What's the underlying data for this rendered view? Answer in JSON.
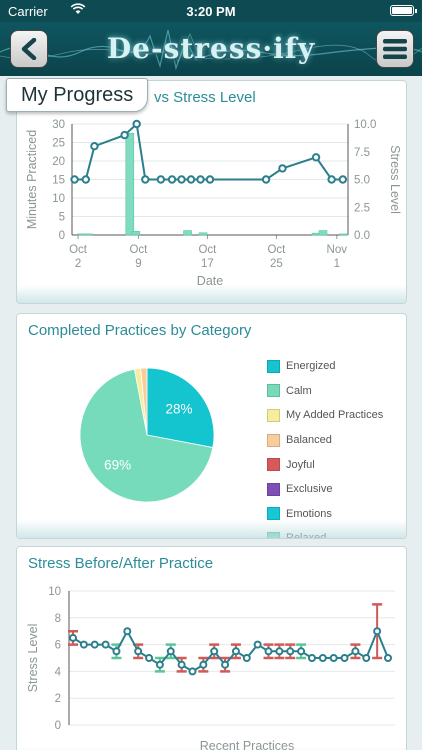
{
  "status_bar": {
    "carrier": "Carrier",
    "time": "3:20 PM"
  },
  "header": {
    "logo": "De-stress·ify"
  },
  "colors": {
    "accent": "#2c8c98",
    "line": "#2b7f8d",
    "bar": "#7fdcc0",
    "error": "#d05a57",
    "error_alt": "#5cc497"
  },
  "progress_card": {
    "tab": "My Progress",
    "title": "vs Stress Level",
    "chart_data": {
      "type": "bar",
      "xlabel": "Date",
      "ylabel": "Minutes Practiced",
      "y2label": "Stress Level",
      "ylim": [
        0,
        30
      ],
      "y2lim": [
        0,
        10
      ],
      "yticks": [
        "0",
        "5",
        "10",
        "15",
        "20",
        "25",
        "30"
      ],
      "y2ticks": [
        "0.0",
        "2.5",
        "5.0",
        "7.5",
        "10.0"
      ],
      "x_range_days": [
        1.3,
        33.3
      ],
      "x_ticks": [
        {
          "line1": "Oct",
          "line2": "2",
          "day": 2
        },
        {
          "line1": "Oct",
          "line2": "9",
          "day": 9
        },
        {
          "line1": "Oct",
          "line2": "17",
          "day": 17
        },
        {
          "line1": "Oct",
          "line2": "25",
          "day": 25
        },
        {
          "line1": "Nov",
          "line2": "1",
          "day": 32
        }
      ],
      "bars": [
        {
          "day": 2.4,
          "minutes": 0.3
        },
        {
          "day": 3.2,
          "minutes": 0.3
        },
        {
          "day": 8.0,
          "minutes": 27.5
        },
        {
          "day": 8.7,
          "minutes": 1.0
        },
        {
          "day": 14.7,
          "minutes": 1.2
        },
        {
          "day": 16.5,
          "minutes": 0.6
        },
        {
          "day": 29.6,
          "minutes": 0.5
        },
        {
          "day": 30.4,
          "minutes": 1.2
        },
        {
          "day": 32.8,
          "minutes": 0.3
        }
      ],
      "stress_series": {
        "name": "Stress Level",
        "points": [
          [
            1.6,
            5
          ],
          [
            2.9,
            5
          ],
          [
            3.9,
            8
          ],
          [
            7.4,
            9
          ],
          [
            8.8,
            10
          ],
          [
            9.8,
            5
          ],
          [
            11.6,
            5
          ],
          [
            12.9,
            5
          ],
          [
            14.0,
            5
          ],
          [
            15.1,
            5
          ],
          [
            16.2,
            5
          ],
          [
            17.3,
            5
          ],
          [
            23.8,
            5
          ],
          [
            25.7,
            6
          ],
          [
            29.6,
            7
          ],
          [
            31.4,
            5
          ],
          [
            32.7,
            5
          ]
        ]
      }
    }
  },
  "pie_card": {
    "title": "Completed Practices by Category",
    "chart_data": {
      "type": "pie",
      "slices": [
        {
          "name": "Energized",
          "value": 28,
          "color": "#14c4cf",
          "label": "28%"
        },
        {
          "name": "Calm",
          "value": 69,
          "color": "#76dbbb",
          "label": "69%"
        },
        {
          "name": "My Added Practices",
          "value": 1.5,
          "color": "#f6ee9c",
          "label": ""
        },
        {
          "name": "Balanced",
          "value": 1.5,
          "color": "#f8cc9b",
          "label": ""
        }
      ],
      "legend": [
        {
          "name": "Energized",
          "color": "#14c4cf"
        },
        {
          "name": "Calm",
          "color": "#76dbbb"
        },
        {
          "name": "My Added Practices",
          "color": "#f6ee9c"
        },
        {
          "name": "Balanced",
          "color": "#f8cc9b"
        },
        {
          "name": "Joyful",
          "color": "#d9595b"
        },
        {
          "name": "Exclusive",
          "color": "#7f4fb6"
        },
        {
          "name": "Emotions",
          "color": "#16c8d5"
        },
        {
          "name": "Relaxed",
          "color": "#76dbbb"
        }
      ]
    }
  },
  "stress_card": {
    "title": "Stress Before/After Practice",
    "chart_data": {
      "type": "line",
      "xlabel": "Recent Practices",
      "ylabel": "Stress Level",
      "ylim": [
        0,
        10
      ],
      "yticks": [
        "0",
        "2",
        "4",
        "6",
        "8",
        "10"
      ],
      "points": [
        {
          "value": 6.5,
          "error": 0.5,
          "kind": "up"
        },
        {
          "value": 6.0
        },
        {
          "value": 6.0
        },
        {
          "value": 6.0
        },
        {
          "value": 5.5,
          "error": 0.5,
          "kind": "down"
        },
        {
          "value": 7.0
        },
        {
          "value": 5.5,
          "error": 0.5,
          "kind": "up"
        },
        {
          "value": 5.0
        },
        {
          "value": 4.5,
          "error": 0.5,
          "kind": "down"
        },
        {
          "value": 5.5,
          "error": 0.5,
          "kind": "down"
        },
        {
          "value": 4.5,
          "error": 0.5,
          "kind": "up"
        },
        {
          "value": 4.0
        },
        {
          "value": 4.5,
          "error": 0.5,
          "kind": "up"
        },
        {
          "value": 5.5,
          "error": 0.5,
          "kind": "up"
        },
        {
          "value": 4.5,
          "error": 0.5,
          "kind": "up"
        },
        {
          "value": 5.5,
          "error": 0.5,
          "kind": "up"
        },
        {
          "value": 5.0
        },
        {
          "value": 6.0
        },
        {
          "value": 5.5,
          "error": 0.5,
          "kind": "up"
        },
        {
          "value": 5.5,
          "error": 0.5,
          "kind": "up"
        },
        {
          "value": 5.5,
          "error": 0.5,
          "kind": "up"
        },
        {
          "value": 5.5,
          "error": 0.5,
          "kind": "down"
        },
        {
          "value": 5.0
        },
        {
          "value": 5.0
        },
        {
          "value": 5.0
        },
        {
          "value": 5.0
        },
        {
          "value": 5.5,
          "error": 0.5,
          "kind": "up"
        },
        {
          "value": 5.0
        },
        {
          "value": 7.0,
          "error": 2.0,
          "kind": "up"
        },
        {
          "value": 5.0
        }
      ]
    }
  }
}
